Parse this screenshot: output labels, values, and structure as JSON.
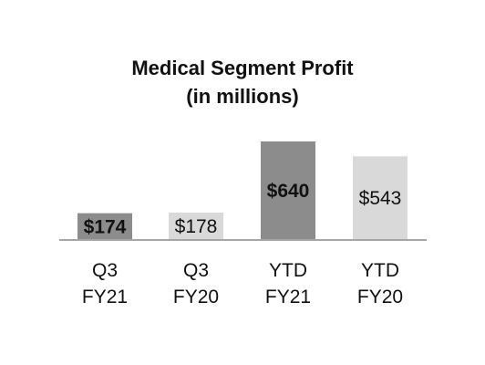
{
  "chart_data": {
    "type": "bar",
    "title_line1": "Medical Segment Profit",
    "title_line2": "(in millions)",
    "categories": [
      {
        "line1": "Q3",
        "line2": "FY21"
      },
      {
        "line1": "Q3",
        "line2": "FY20"
      },
      {
        "line1": "YTD",
        "line2": "FY21"
      },
      {
        "line1": "YTD",
        "line2": "FY20"
      }
    ],
    "values": [
      174,
      178,
      640,
      543
    ],
    "value_labels": [
      "$174",
      "$178",
      "$640",
      "$543"
    ],
    "bold_labels": [
      true,
      false,
      true,
      false
    ],
    "colors": [
      "#8c8c8c",
      "#d9d9d9",
      "#8c8c8c",
      "#d9d9d9"
    ],
    "axis_color": "#a6a6a6",
    "ylim": [
      0,
      700
    ],
    "legend": "none",
    "grid": false
  }
}
